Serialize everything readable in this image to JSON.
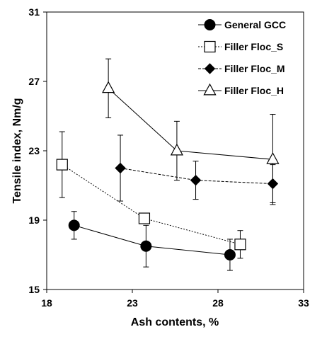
{
  "chart_data": {
    "type": "scatter",
    "title": "",
    "xlabel": "Ash contents, %",
    "ylabel": "Tensile index, Nm/g",
    "xlim": [
      18,
      33
    ],
    "ylim": [
      15,
      31
    ],
    "xticks": [
      18,
      23,
      28,
      33
    ],
    "yticks": [
      15,
      19,
      23,
      27,
      31
    ],
    "grid": false,
    "legend_position": "top-right",
    "series": [
      {
        "name": "General GCC",
        "marker": "filled-circle",
        "line": "solid",
        "x": [
          19.6,
          23.8,
          28.7
        ],
        "y": [
          18.7,
          17.5,
          17.0
        ],
        "err": [
          0.8,
          1.2,
          0.9
        ]
      },
      {
        "name": "Filler Floc_S",
        "marker": "open-square",
        "line": "dotted",
        "x": [
          18.9,
          23.7,
          29.3
        ],
        "y": [
          22.2,
          19.1,
          17.6
        ],
        "err": [
          1.9,
          0.3,
          0.8
        ]
      },
      {
        "name": "Filler Floc_M",
        "marker": "filled-diamond",
        "line": "dashed",
        "x": [
          22.3,
          26.7,
          31.2
        ],
        "y": [
          22.0,
          21.3,
          21.1
        ],
        "err": [
          1.9,
          1.1,
          1.1
        ]
      },
      {
        "name": "Filler Floc_H",
        "marker": "open-triangle",
        "line": "solid",
        "x": [
          21.6,
          25.6,
          31.2
        ],
        "y": [
          26.6,
          23.0,
          22.5
        ],
        "err": [
          1.7,
          1.7,
          2.6
        ]
      }
    ]
  }
}
